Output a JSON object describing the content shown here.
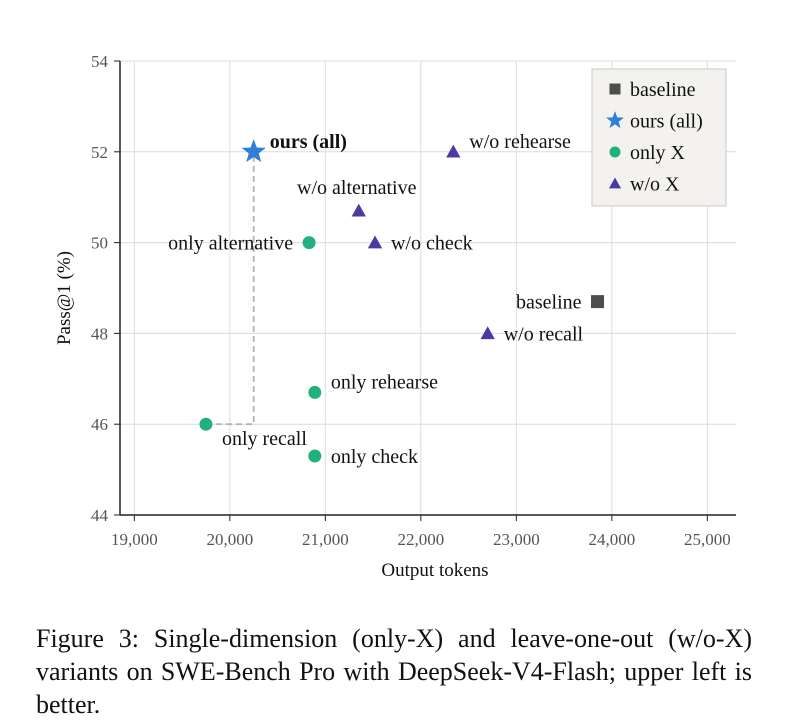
{
  "chart_data": {
    "type": "scatter",
    "xlabel": "Output tokens",
    "ylabel": "Pass@1 (%)",
    "xlim": [
      18850,
      25300
    ],
    "ylim": [
      44,
      54
    ],
    "xticks": [
      19000,
      20000,
      21000,
      22000,
      23000,
      24000,
      25000
    ],
    "xtick_labels": [
      "19,000",
      "20,000",
      "21,000",
      "22,000",
      "23,000",
      "24,000",
      "25,000"
    ],
    "yticks": [
      44,
      46,
      48,
      50,
      52,
      54
    ],
    "ytick_labels": [
      "44",
      "46",
      "48",
      "50",
      "52",
      "54"
    ],
    "grid": true,
    "legend_position": "top-right",
    "legend": [
      {
        "label": "baseline",
        "marker": "square",
        "color": "#4d4d4d"
      },
      {
        "label": "ours (all)",
        "marker": "star",
        "color": "#2f7fd6"
      },
      {
        "label": "only X",
        "marker": "circle",
        "color": "#22b07d"
      },
      {
        "label": "w/o X",
        "marker": "triangle",
        "color": "#4b3aa6"
      }
    ],
    "points": [
      {
        "label": "baseline",
        "group": "baseline",
        "x": 23850,
        "y": 48.7,
        "label_pos": "left",
        "bold": false
      },
      {
        "label": "ours (all)",
        "group": "ours",
        "x": 20250,
        "y": 52.0,
        "label_pos": "right-up",
        "bold": true
      },
      {
        "label": "only alternative",
        "group": "only",
        "x": 20830,
        "y": 50.0,
        "label_pos": "left",
        "bold": false
      },
      {
        "label": "only rehearse",
        "group": "only",
        "x": 20890,
        "y": 46.7,
        "label_pos": "right-up",
        "bold": false
      },
      {
        "label": "only recall",
        "group": "only",
        "x": 19750,
        "y": 46.0,
        "label_pos": "below-right",
        "bold": false
      },
      {
        "label": "only check",
        "group": "only",
        "x": 20890,
        "y": 45.3,
        "label_pos": "right",
        "bold": false
      },
      {
        "label": "w/o rehearse",
        "group": "wo",
        "x": 22340,
        "y": 52.0,
        "label_pos": "right-up",
        "bold": false
      },
      {
        "label": "w/o alternative",
        "group": "wo",
        "x": 21350,
        "y": 50.7,
        "label_pos": "above",
        "bold": false
      },
      {
        "label": "w/o check",
        "group": "wo",
        "x": 21520,
        "y": 50.0,
        "label_pos": "right",
        "bold": false
      },
      {
        "label": "w/o recall",
        "group": "wo",
        "x": 22700,
        "y": 48.0,
        "label_pos": "right",
        "bold": false
      }
    ],
    "guide_line": {
      "from": [
        19750,
        46.0
      ],
      "corner": [
        20250,
        46.0
      ],
      "to": [
        20250,
        52.0
      ]
    }
  },
  "caption": {
    "text": "Figure 3: Single-dimension (only-X) and leave-one-out (w/o-X) variants on SWE-Bench Pro with DeepSeek-V4-Flash; upper left is better."
  }
}
